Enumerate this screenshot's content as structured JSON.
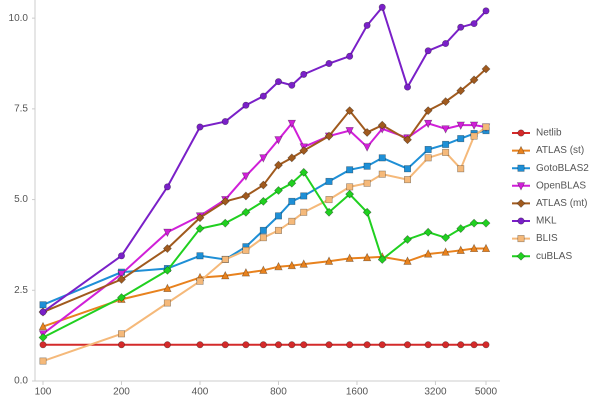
{
  "chart_data": {
    "type": "line",
    "xscale": "log",
    "grid": false,
    "legend": "right",
    "x": [
      100,
      200,
      300,
      400,
      500,
      600,
      700,
      800,
      900,
      1000,
      1250,
      1500,
      1750,
      2000,
      2500,
      3000,
      3500,
      4000,
      4500,
      5000
    ],
    "xlim": [
      100,
      5000
    ],
    "xticks": [
      100,
      200,
      400,
      800,
      1600,
      3200,
      5000
    ],
    "ylim": [
      0,
      10.5
    ],
    "yticks": [
      {
        "value": 0,
        "label": "0.0"
      },
      2.5,
      {
        "value": 5,
        "label": "5.0"
      },
      7.5,
      {
        "value": 10,
        "label": "10.0"
      }
    ],
    "series": [
      {
        "name": "Netlib",
        "color": "#d42a2a",
        "marker": "circle",
        "values": [
          1,
          1,
          1,
          1,
          1,
          1,
          1,
          1,
          1,
          1,
          1,
          1,
          1,
          1,
          1,
          1,
          1,
          1,
          1,
          1
        ]
      },
      {
        "name": "ATLAS (st)",
        "color": "#e8821e",
        "marker": "triangle",
        "values": [
          1.5,
          2.25,
          2.55,
          2.85,
          2.9,
          2.98,
          3.05,
          3.15,
          3.18,
          3.22,
          3.3,
          3.38,
          3.4,
          3.42,
          3.3,
          3.5,
          3.55,
          3.6,
          3.65,
          3.65
        ]
      },
      {
        "name": "GotoBLAS2",
        "color": "#1e8fd6",
        "marker": "square",
        "values": [
          2.1,
          3.0,
          3.1,
          3.45,
          3.35,
          3.7,
          4.15,
          4.55,
          4.95,
          5.1,
          5.5,
          5.82,
          5.92,
          6.15,
          5.85,
          6.38,
          6.52,
          6.68,
          6.82,
          6.9
        ]
      },
      {
        "name": "OpenBLAS",
        "color": "#d020d8",
        "marker": "triangle-down",
        "values": [
          1.3,
          2.95,
          4.1,
          4.55,
          5.0,
          5.65,
          6.15,
          6.65,
          7.1,
          6.45,
          6.75,
          6.9,
          6.45,
          6.95,
          6.7,
          7.1,
          6.95,
          7.05,
          7.05,
          7.0
        ]
      },
      {
        "name": "ATLAS (mt)",
        "color": "#a05a1e",
        "marker": "diamond",
        "values": [
          1.9,
          2.8,
          3.65,
          4.5,
          4.95,
          5.1,
          5.4,
          5.95,
          6.15,
          6.35,
          6.75,
          7.45,
          6.85,
          7.05,
          6.65,
          7.45,
          7.7,
          8.0,
          8.3,
          8.6
        ]
      },
      {
        "name": "MKL",
        "color": "#7a20c8",
        "marker": "circle",
        "values": [
          1.9,
          3.45,
          5.35,
          7.0,
          7.15,
          7.6,
          7.85,
          8.25,
          8.15,
          8.45,
          8.75,
          8.95,
          9.8,
          10.3,
          8.1,
          9.1,
          9.3,
          9.75,
          9.85,
          10.2
        ]
      },
      {
        "name": "BLIS",
        "color": "#f5b97a",
        "marker": "square",
        "values": [
          0.55,
          1.3,
          2.15,
          2.75,
          3.35,
          3.6,
          3.95,
          4.15,
          4.4,
          4.65,
          5.0,
          5.35,
          5.45,
          5.7,
          5.55,
          6.15,
          6.3,
          5.85,
          6.75,
          7.0
        ]
      },
      {
        "name": "cuBLAS",
        "color": "#20d020",
        "marker": "diamond",
        "values": [
          1.2,
          2.3,
          3.05,
          4.2,
          4.35,
          4.65,
          4.95,
          5.25,
          5.45,
          5.75,
          4.65,
          5.15,
          4.65,
          3.35,
          3.9,
          4.1,
          3.95,
          4.2,
          4.35,
          4.35
        ]
      }
    ]
  }
}
